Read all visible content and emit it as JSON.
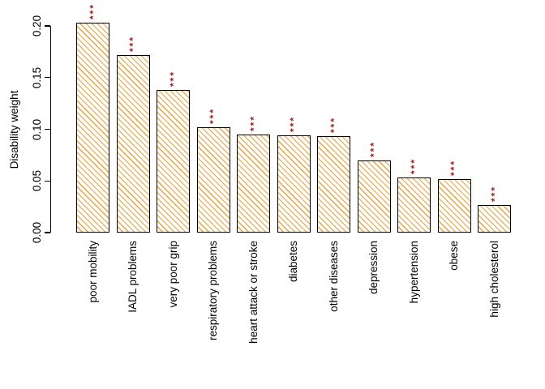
{
  "chart_data": {
    "type": "bar",
    "title": "",
    "xlabel": "",
    "ylabel": "Disability weight",
    "ylim": [
      0,
      0.2
    ],
    "ytick_labels": [
      "0.00",
      "0.05",
      "0.10",
      "0.15",
      "0.20"
    ],
    "ytick_values": [
      0.0,
      0.05,
      0.1,
      0.15,
      0.2
    ],
    "categories": [
      "poor mobility",
      "IADL problems",
      "very poor grip",
      "respiratory problems",
      "heart attack or stroke",
      "diabetes",
      "other diseases",
      "depression",
      "hypertension",
      "obese",
      "high cholesterol"
    ],
    "values": [
      0.203,
      0.172,
      0.138,
      0.102,
      0.095,
      0.094,
      0.093,
      0.07,
      0.053,
      0.052,
      0.027
    ],
    "significance": [
      "***",
      "***",
      "***",
      "***",
      "***",
      "***",
      "***",
      "***",
      "***",
      "***",
      "***"
    ],
    "grid": false,
    "legend": null,
    "colors": {
      "bar_hatch": "#E8A33C",
      "bar_background": "#FFFFFF",
      "bar_border": "#000000",
      "significance_stars": "#9B1C1C",
      "axis": "#000000"
    }
  }
}
